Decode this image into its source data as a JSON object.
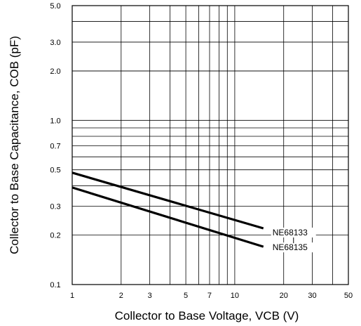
{
  "chart_data": {
    "type": "line",
    "title": "",
    "xlabel": "Collector to Base Voltage, VCB (V)",
    "ylabel": "Collector to Base Capacitance, COB (pF)",
    "x_scale": "log",
    "y_scale": "log",
    "xlim": [
      1,
      50
    ],
    "ylim": [
      0.1,
      5.0
    ],
    "grid": true,
    "x_ticks": [
      1,
      2,
      3,
      5,
      7,
      10,
      20,
      30,
      50
    ],
    "x_tick_labels": [
      "1",
      "2",
      "3",
      "5",
      "7",
      "10",
      "20",
      "30",
      "50"
    ],
    "y_ticks": [
      0.1,
      0.2,
      0.3,
      0.5,
      0.7,
      1.0,
      2.0,
      3.0,
      5.0
    ],
    "y_tick_labels": [
      "0.1",
      "0.2",
      "0.3",
      "0.5",
      "0.7",
      "1.0",
      "2.0",
      "3.0",
      "5.0"
    ],
    "series": [
      {
        "name": "NE68133",
        "x": [
          1,
          15
        ],
        "y": [
          0.48,
          0.22
        ]
      },
      {
        "name": "NE68135",
        "x": [
          1,
          15
        ],
        "y": [
          0.39,
          0.17
        ]
      }
    ]
  }
}
